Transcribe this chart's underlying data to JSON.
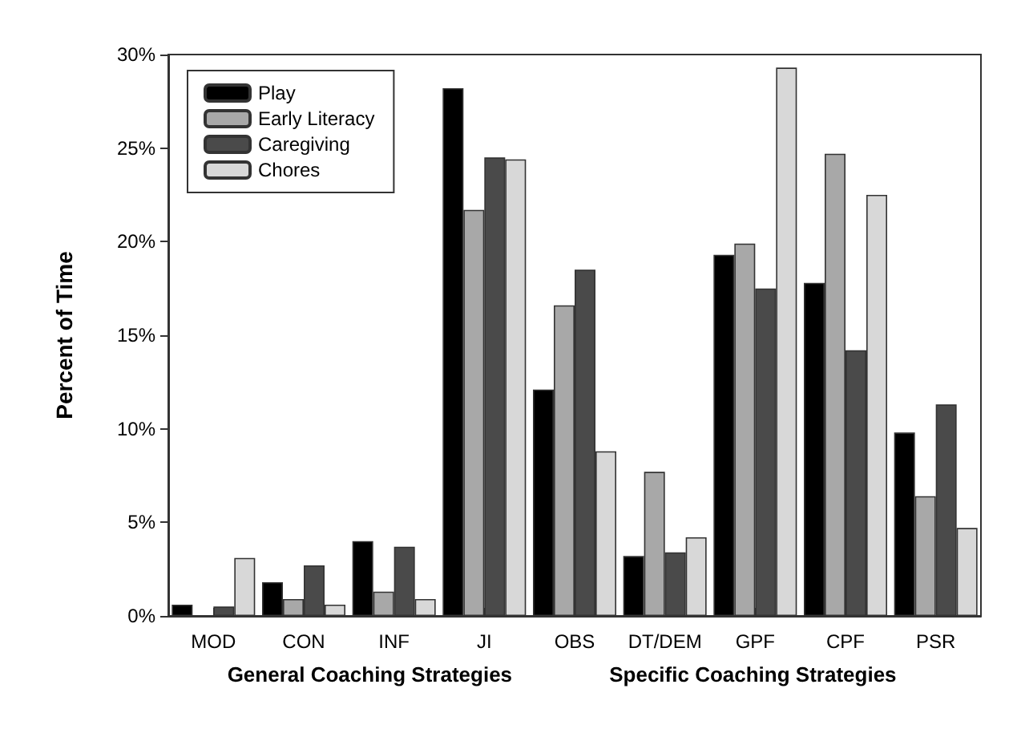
{
  "chart_data": {
    "type": "bar",
    "ylabel": "Percent of Time",
    "categories": [
      "MOD",
      "CON",
      "INF",
      "JI",
      "OBS",
      "DT/DEM",
      "GPF",
      "CPF",
      "PSR"
    ],
    "series": [
      {
        "name": "Play",
        "color": "#000000",
        "values": [
          0.6,
          1.8,
          4.0,
          28.2,
          12.1,
          3.2,
          19.3,
          17.8,
          9.8
        ]
      },
      {
        "name": "Early Literacy",
        "color": "#a8a8a8",
        "values": [
          null,
          0.9,
          1.3,
          21.7,
          16.6,
          7.7,
          19.9,
          24.7,
          6.4
        ]
      },
      {
        "name": "Caregiving",
        "color": "#4a4a4a",
        "values": [
          0.5,
          2.7,
          3.7,
          24.5,
          18.5,
          3.4,
          17.5,
          14.2,
          11.3
        ]
      },
      {
        "name": "Chores",
        "color": "#d8d8d8",
        "values": [
          3.1,
          0.6,
          0.9,
          24.4,
          8.8,
          4.2,
          29.3,
          22.5,
          4.7
        ]
      }
    ],
    "annotations": [
      "General Coaching Strategies",
      "Specific Coaching Strategies"
    ],
    "ylim": [
      0,
      30
    ],
    "yticks": [
      {
        "value": 0,
        "label": "0%"
      },
      {
        "value": 5,
        "label": "5%"
      },
      {
        "value": 10,
        "label": "10%"
      },
      {
        "value": 15,
        "label": "15%"
      },
      {
        "value": 20,
        "label": "20%"
      },
      {
        "value": 25,
        "label": "25%"
      },
      {
        "value": 30,
        "label": "30%"
      }
    ],
    "legend": "top left",
    "grid": false
  }
}
